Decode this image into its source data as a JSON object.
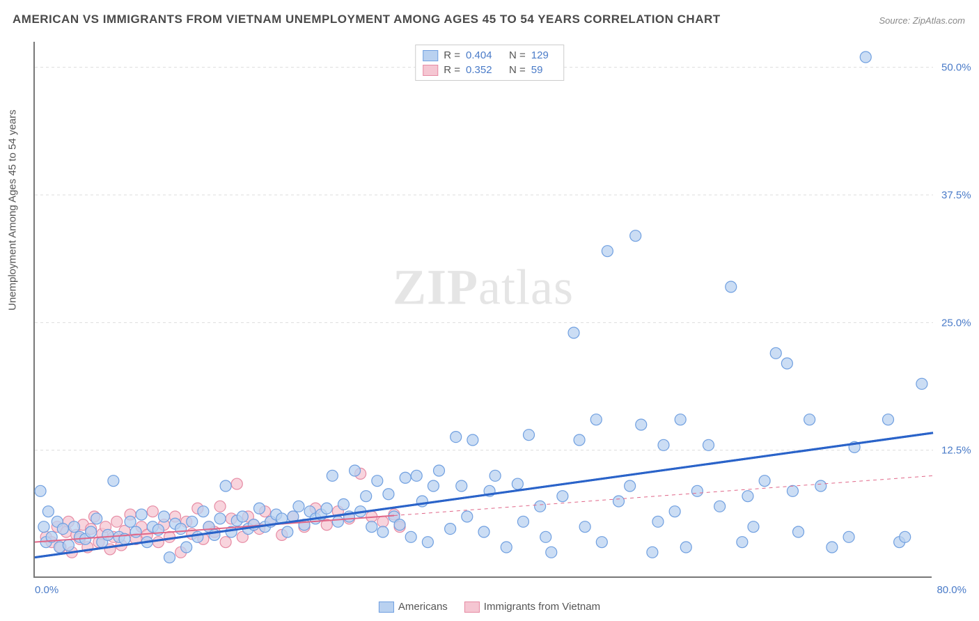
{
  "title": "AMERICAN VS IMMIGRANTS FROM VIETNAM UNEMPLOYMENT AMONG AGES 45 TO 54 YEARS CORRELATION CHART",
  "source": "Source: ZipAtlas.com",
  "y_axis_label": "Unemployment Among Ages 45 to 54 years",
  "watermark_bold": "ZIP",
  "watermark_rest": "atlas",
  "chart": {
    "type": "scatter",
    "xlim": [
      0,
      80
    ],
    "ylim": [
      0,
      52.5
    ],
    "x_ticks": [
      {
        "pos": 0,
        "label": "0.0%"
      },
      {
        "pos": 80,
        "label": "80.0%"
      }
    ],
    "y_ticks": [
      {
        "pos": 12.5,
        "label": "12.5%"
      },
      {
        "pos": 25.0,
        "label": "25.0%"
      },
      {
        "pos": 37.5,
        "label": "37.5%"
      },
      {
        "pos": 50.0,
        "label": "50.0%"
      }
    ],
    "grid_color": "#dddddd",
    "background_color": "#ffffff",
    "series": [
      {
        "name": "Americans",
        "marker_fill": "#b9d1f0",
        "marker_stroke": "#6f9fe0",
        "marker_radius": 8,
        "marker_opacity": 0.75,
        "line_color": "#2a63c9",
        "line_width": 3,
        "line_style": "solid",
        "line_extrapolate_style": "dashed",
        "correlation_R": "0.404",
        "correlation_N": "129",
        "data_xmax": 36,
        "regression": {
          "x1": 0,
          "y1": 2.0,
          "x2": 80,
          "y2": 14.2
        },
        "points": [
          [
            0.5,
            8.5
          ],
          [
            0.8,
            5.0
          ],
          [
            1.0,
            3.5
          ],
          [
            1.2,
            6.5
          ],
          [
            1.5,
            4.0
          ],
          [
            2.0,
            5.5
          ],
          [
            2.2,
            3.0
          ],
          [
            2.5,
            4.8
          ],
          [
            3.0,
            3.2
          ],
          [
            3.5,
            5.0
          ],
          [
            4.0,
            4.0
          ],
          [
            4.5,
            3.8
          ],
          [
            5.0,
            4.5
          ],
          [
            5.5,
            5.8
          ],
          [
            6.0,
            3.5
          ],
          [
            6.5,
            4.2
          ],
          [
            7.0,
            9.5
          ],
          [
            7.5,
            4.0
          ],
          [
            8.0,
            3.8
          ],
          [
            8.5,
            5.5
          ],
          [
            9.0,
            4.5
          ],
          [
            9.5,
            6.2
          ],
          [
            10.0,
            3.5
          ],
          [
            10.5,
            5.0
          ],
          [
            11.0,
            4.7
          ],
          [
            11.5,
            6.0
          ],
          [
            12.0,
            2.0
          ],
          [
            12.5,
            5.3
          ],
          [
            13.0,
            4.8
          ],
          [
            13.5,
            3.0
          ],
          [
            14.0,
            5.5
          ],
          [
            14.5,
            4.0
          ],
          [
            15.0,
            6.5
          ],
          [
            15.5,
            5.0
          ],
          [
            16.0,
            4.2
          ],
          [
            16.5,
            5.8
          ],
          [
            17.0,
            9.0
          ],
          [
            17.5,
            4.5
          ],
          [
            18.0,
            5.6
          ],
          [
            18.5,
            6.0
          ],
          [
            19.0,
            4.8
          ],
          [
            19.5,
            5.2
          ],
          [
            20.0,
            6.8
          ],
          [
            20.5,
            5.0
          ],
          [
            21.0,
            5.5
          ],
          [
            21.5,
            6.2
          ],
          [
            22.0,
            5.8
          ],
          [
            22.5,
            4.5
          ],
          [
            23.0,
            6.0
          ],
          [
            23.5,
            7.0
          ],
          [
            24.0,
            5.2
          ],
          [
            24.5,
            6.5
          ],
          [
            25.0,
            5.8
          ],
          [
            25.5,
            6.2
          ],
          [
            26.0,
            6.8
          ],
          [
            26.5,
            10.0
          ],
          [
            27.0,
            5.5
          ],
          [
            27.5,
            7.2
          ],
          [
            28.0,
            6.0
          ],
          [
            28.5,
            10.5
          ],
          [
            29.0,
            6.5
          ],
          [
            29.5,
            8.0
          ],
          [
            30.0,
            5.0
          ],
          [
            30.5,
            9.5
          ],
          [
            31.0,
            4.5
          ],
          [
            31.5,
            8.2
          ],
          [
            32.0,
            6.0
          ],
          [
            32.5,
            5.2
          ],
          [
            33.0,
            9.8
          ],
          [
            33.5,
            4.0
          ],
          [
            34.0,
            10.0
          ],
          [
            34.5,
            7.5
          ],
          [
            35.0,
            3.5
          ],
          [
            35.5,
            9.0
          ],
          [
            36.0,
            10.5
          ],
          [
            37.0,
            4.8
          ],
          [
            37.5,
            13.8
          ],
          [
            38.0,
            9.0
          ],
          [
            38.5,
            6.0
          ],
          [
            39.0,
            13.5
          ],
          [
            40.0,
            4.5
          ],
          [
            40.5,
            8.5
          ],
          [
            41.0,
            10.0
          ],
          [
            42.0,
            3.0
          ],
          [
            43.0,
            9.2
          ],
          [
            43.5,
            5.5
          ],
          [
            44.0,
            14.0
          ],
          [
            45.0,
            7.0
          ],
          [
            45.5,
            4.0
          ],
          [
            46.0,
            2.5
          ],
          [
            47.0,
            8.0
          ],
          [
            48.0,
            24.0
          ],
          [
            48.5,
            13.5
          ],
          [
            49.0,
            5.0
          ],
          [
            50.0,
            15.5
          ],
          [
            50.5,
            3.5
          ],
          [
            51.0,
            32.0
          ],
          [
            52.0,
            7.5
          ],
          [
            53.0,
            9.0
          ],
          [
            53.5,
            33.5
          ],
          [
            54.0,
            15.0
          ],
          [
            55.0,
            2.5
          ],
          [
            55.5,
            5.5
          ],
          [
            56.0,
            13.0
          ],
          [
            57.0,
            6.5
          ],
          [
            57.5,
            15.5
          ],
          [
            58.0,
            3.0
          ],
          [
            59.0,
            8.5
          ],
          [
            60.0,
            13.0
          ],
          [
            61.0,
            7.0
          ],
          [
            62.0,
            28.5
          ],
          [
            63.0,
            3.5
          ],
          [
            63.5,
            8.0
          ],
          [
            64.0,
            5.0
          ],
          [
            65.0,
            9.5
          ],
          [
            66.0,
            22.0
          ],
          [
            67.0,
            21.0
          ],
          [
            67.5,
            8.5
          ],
          [
            68.0,
            4.5
          ],
          [
            69.0,
            15.5
          ],
          [
            70.0,
            9.0
          ],
          [
            71.0,
            3.0
          ],
          [
            72.5,
            4.0
          ],
          [
            73.0,
            12.8
          ],
          [
            74.0,
            51.0
          ],
          [
            76.0,
            15.5
          ],
          [
            77.0,
            3.5
          ],
          [
            77.5,
            4.0
          ],
          [
            79.0,
            19.0
          ]
        ]
      },
      {
        "name": "Immigrants from Vietnam",
        "marker_fill": "#f5c6d2",
        "marker_stroke": "#e68aa3",
        "marker_radius": 8,
        "marker_opacity": 0.75,
        "line_color": "#e06688",
        "line_width": 2,
        "line_style": "solid",
        "line_extrapolate_style": "dashed",
        "correlation_R": "0.352",
        "correlation_N": "59",
        "data_xmax": 32,
        "regression": {
          "x1": 0,
          "y1": 3.5,
          "x2": 80,
          "y2": 10.0
        },
        "points": [
          [
            1.0,
            4.0
          ],
          [
            1.5,
            3.5
          ],
          [
            2.0,
            5.0
          ],
          [
            2.3,
            3.0
          ],
          [
            2.8,
            4.5
          ],
          [
            3.0,
            5.5
          ],
          [
            3.3,
            2.5
          ],
          [
            3.7,
            4.2
          ],
          [
            4.0,
            3.8
          ],
          [
            4.3,
            5.2
          ],
          [
            4.7,
            3.0
          ],
          [
            5.0,
            4.8
          ],
          [
            5.3,
            6.0
          ],
          [
            5.7,
            3.5
          ],
          [
            6.0,
            4.3
          ],
          [
            6.3,
            5.0
          ],
          [
            6.7,
            2.8
          ],
          [
            7.0,
            4.0
          ],
          [
            7.3,
            5.5
          ],
          [
            7.7,
            3.2
          ],
          [
            8.0,
            4.6
          ],
          [
            8.5,
            6.2
          ],
          [
            9.0,
            3.8
          ],
          [
            9.5,
            5.0
          ],
          [
            10.0,
            4.2
          ],
          [
            10.5,
            6.5
          ],
          [
            11.0,
            3.5
          ],
          [
            11.5,
            5.2
          ],
          [
            12.0,
            4.0
          ],
          [
            12.5,
            6.0
          ],
          [
            13.0,
            2.5
          ],
          [
            13.5,
            5.5
          ],
          [
            14.0,
            4.3
          ],
          [
            14.5,
            6.8
          ],
          [
            15.0,
            3.8
          ],
          [
            15.5,
            5.0
          ],
          [
            16.0,
            4.5
          ],
          [
            16.5,
            7.0
          ],
          [
            17.0,
            3.5
          ],
          [
            17.5,
            5.8
          ],
          [
            18.0,
            9.2
          ],
          [
            18.5,
            4.0
          ],
          [
            19.0,
            6.0
          ],
          [
            19.5,
            5.2
          ],
          [
            20.0,
            4.8
          ],
          [
            20.5,
            6.5
          ],
          [
            21.0,
            5.5
          ],
          [
            22.0,
            4.2
          ],
          [
            23.0,
            6.0
          ],
          [
            24.0,
            5.0
          ],
          [
            25.0,
            6.8
          ],
          [
            26.0,
            5.2
          ],
          [
            27.0,
            6.5
          ],
          [
            28.0,
            5.8
          ],
          [
            29.0,
            10.2
          ],
          [
            30.0,
            6.0
          ],
          [
            31.0,
            5.5
          ],
          [
            32.0,
            6.2
          ],
          [
            32.5,
            5.0
          ]
        ]
      }
    ]
  },
  "legend_top": {
    "r_label": "R =",
    "n_label": "N ="
  },
  "legend_bottom": [
    {
      "swatch_fill": "#b9d1f0",
      "swatch_stroke": "#6f9fe0",
      "label": "Americans"
    },
    {
      "swatch_fill": "#f5c6d2",
      "swatch_stroke": "#e68aa3",
      "label": "Immigrants from Vietnam"
    }
  ]
}
